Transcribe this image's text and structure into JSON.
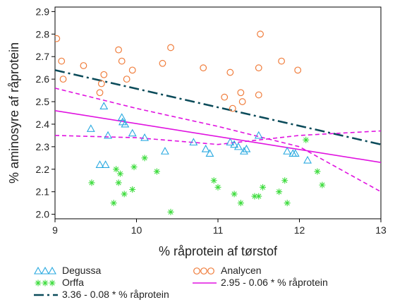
{
  "chart_data": {
    "type": "scatter",
    "title": "",
    "xlabel": "% råprotein af tørstof",
    "ylabel": "% aminosyre af råprotein",
    "xlim": [
      9,
      13
    ],
    "ylim": [
      1.98,
      2.92
    ],
    "xticks": [
      "9",
      "10",
      "11",
      "12",
      "13"
    ],
    "yticks": [
      "2.0",
      "2.1",
      "2.2",
      "2.3",
      "2.4",
      "2.5",
      "2.6",
      "2.7",
      "2.8",
      "2.9"
    ],
    "grid": false,
    "legend_position": "bottom",
    "series": [
      {
        "name": "Degussa",
        "marker": "triangle",
        "color": "#29a9e0",
        "points": [
          [
            9.44,
            2.38
          ],
          [
            9.55,
            2.22
          ],
          [
            9.6,
            2.48
          ],
          [
            9.62,
            2.22
          ],
          [
            9.65,
            2.35
          ],
          [
            9.82,
            2.43
          ],
          [
            9.83,
            2.41
          ],
          [
            9.86,
            2.4
          ],
          [
            9.95,
            2.36
          ],
          [
            10.1,
            2.34
          ],
          [
            10.35,
            2.28
          ],
          [
            10.7,
            2.32
          ],
          [
            10.85,
            2.29
          ],
          [
            10.9,
            2.27
          ],
          [
            11.15,
            2.32
          ],
          [
            11.2,
            2.31
          ],
          [
            11.25,
            2.3
          ],
          [
            11.32,
            2.28
          ],
          [
            11.35,
            2.29
          ],
          [
            11.5,
            2.35
          ],
          [
            11.85,
            2.28
          ],
          [
            11.92,
            2.27
          ],
          [
            11.95,
            2.27
          ],
          [
            12.1,
            2.24
          ]
        ]
      },
      {
        "name": "Orffa",
        "marker": "star",
        "color": "#3ddc3d",
        "points": [
          [
            9.45,
            2.14
          ],
          [
            9.72,
            2.05
          ],
          [
            9.75,
            2.2
          ],
          [
            9.78,
            2.14
          ],
          [
            9.8,
            2.18
          ],
          [
            9.85,
            2.09
          ],
          [
            9.95,
            2.11
          ],
          [
            9.97,
            2.21
          ],
          [
            10.1,
            2.25
          ],
          [
            10.25,
            2.19
          ],
          [
            10.42,
            2.01
          ],
          [
            10.95,
            2.15
          ],
          [
            11.0,
            2.12
          ],
          [
            11.2,
            2.09
          ],
          [
            11.28,
            2.05
          ],
          [
            11.45,
            2.08
          ],
          [
            11.5,
            2.08
          ],
          [
            11.55,
            2.12
          ],
          [
            11.75,
            2.1
          ],
          [
            11.82,
            2.15
          ],
          [
            11.85,
            2.05
          ],
          [
            12.08,
            2.33
          ],
          [
            12.22,
            2.19
          ],
          [
            12.28,
            2.13
          ]
        ]
      },
      {
        "name": "Analycen",
        "marker": "circle",
        "color": "#f07d3c",
        "points": [
          [
            9.02,
            2.78
          ],
          [
            9.08,
            2.68
          ],
          [
            9.1,
            2.6
          ],
          [
            9.35,
            2.66
          ],
          [
            9.55,
            2.54
          ],
          [
            9.57,
            2.58
          ],
          [
            9.6,
            2.62
          ],
          [
            9.78,
            2.73
          ],
          [
            9.82,
            2.68
          ],
          [
            9.88,
            2.6
          ],
          [
            9.95,
            2.64
          ],
          [
            10.32,
            2.67
          ],
          [
            10.42,
            2.74
          ],
          [
            10.82,
            2.65
          ],
          [
            11.08,
            2.52
          ],
          [
            11.15,
            2.63
          ],
          [
            11.18,
            2.47
          ],
          [
            11.28,
            2.54
          ],
          [
            11.3,
            2.5
          ],
          [
            11.5,
            2.53
          ],
          [
            11.5,
            2.65
          ],
          [
            11.52,
            2.8
          ],
          [
            11.78,
            2.68
          ],
          [
            11.98,
            2.64
          ]
        ]
      }
    ],
    "lines": [
      {
        "name": "3.36 - 0.08 * % råprotein",
        "style": "dash-dot",
        "color": "#0b4b5a",
        "points": [
          [
            9,
            2.64
          ],
          [
            13,
            2.31
          ]
        ]
      },
      {
        "name": "2.95 - 0.06 * % råprotein",
        "style": "solid",
        "color": "#e012e0",
        "points": [
          [
            9,
            2.46
          ],
          [
            13,
            2.23
          ]
        ]
      },
      {
        "name": "",
        "style": "dashed",
        "color": "#e012e0",
        "points": [
          [
            9,
            2.56
          ],
          [
            10,
            2.47
          ],
          [
            11,
            2.39
          ],
          [
            12,
            2.3
          ],
          [
            13,
            2.1
          ]
        ]
      },
      {
        "name": "",
        "style": "dashed",
        "color": "#e012e0",
        "points": [
          [
            9,
            2.35
          ],
          [
            10,
            2.34
          ],
          [
            11,
            2.31
          ],
          [
            12,
            2.35
          ],
          [
            13,
            2.37
          ]
        ]
      }
    ]
  }
}
